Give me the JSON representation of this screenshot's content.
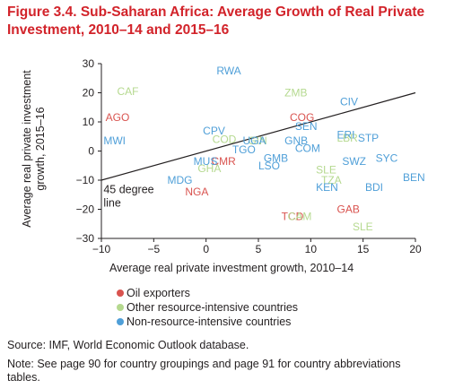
{
  "figure": {
    "title": "Figure 3.4. Sub-Saharan Africa: Average Growth of Real Private Investment, 2010–14 and 2015–16",
    "source": "Source: IMF, World Economic Outlook database.",
    "note": "Note: See page 90 for country groupings and page 91 for country abbreviations tables."
  },
  "chart_data": {
    "type": "scatter",
    "xlabel": "Average real private investment growth, 2010–14",
    "ylabel_lines": [
      "Average real private investment",
      "growth, 2015–16"
    ],
    "xlim": [
      -10,
      20
    ],
    "ylim": [
      -30,
      30
    ],
    "xticks": [
      -10,
      -5,
      0,
      5,
      10,
      15,
      20
    ],
    "xtick_labels": [
      "−10",
      "−5",
      "0",
      "5",
      "10",
      "15",
      "20"
    ],
    "yticks": [
      30,
      20,
      10,
      0,
      -10,
      -20,
      -30
    ],
    "ytick_labels": [
      "30",
      "20",
      "10",
      "0",
      "−10",
      "−20",
      "−30"
    ],
    "reference_line": {
      "label": [
        "45 degree",
        "line"
      ],
      "from": [
        -10,
        -10
      ],
      "to": [
        20,
        20
      ]
    },
    "colors": {
      "oil": "#d9534f",
      "resource": "#b5d98f",
      "nonresource": "#4f9fd8"
    },
    "series": [
      {
        "name": "Oil exporters",
        "key": "oil",
        "color": "#d9534f",
        "points": [
          {
            "label": "AGO",
            "x": -9.6,
            "y": 11.5
          },
          {
            "label": "COG",
            "x": 8.0,
            "y": 11.5
          },
          {
            "label": "CMR",
            "x": 0.5,
            "y": -3.5
          },
          {
            "label": "NGA",
            "x": -2.0,
            "y": -14.0
          },
          {
            "label": "TCD",
            "x": 7.2,
            "y": -22.5
          },
          {
            "label": "GAB",
            "x": 12.5,
            "y": -20.0
          }
        ]
      },
      {
        "name": "Other resource-intensive countries",
        "key": "resource",
        "color": "#b5d98f",
        "points": [
          {
            "label": "CAF",
            "x": -8.5,
            "y": 20.5
          },
          {
            "label": "ZMB",
            "x": 7.5,
            "y": 20.0
          },
          {
            "label": "COD",
            "x": 0.6,
            "y": 4.0
          },
          {
            "label": "GHA",
            "x": -0.8,
            "y": -6.0
          },
          {
            "label": "SLE",
            "x": 10.5,
            "y": -6.5
          },
          {
            "label": "TZA",
            "x": 11.0,
            "y": -10.0
          },
          {
            "label": "CAM",
            "x": 7.8,
            "y": -22.5
          },
          {
            "label": "SLE",
            "x": 14.0,
            "y": -26.0
          },
          {
            "label": "LBR",
            "x": 12.5,
            "y": 4.5
          },
          {
            "label": "GIN",
            "x": 4.0,
            "y": 3.5
          }
        ]
      },
      {
        "name": "Non-resource-intensive countries",
        "key": "nonresource",
        "color": "#4f9fd8",
        "points": [
          {
            "label": "RWA",
            "x": 1.0,
            "y": 27.5
          },
          {
            "label": "CIV",
            "x": 12.8,
            "y": 17.0
          },
          {
            "label": "MWI",
            "x": -9.8,
            "y": 3.5
          },
          {
            "label": "CPV",
            "x": -0.3,
            "y": 7.0
          },
          {
            "label": "UGA",
            "x": 3.5,
            "y": 3.5
          },
          {
            "label": "TGO",
            "x": 2.5,
            "y": 0.5
          },
          {
            "label": "SEN",
            "x": 8.5,
            "y": 8.5
          },
          {
            "label": "GNB",
            "x": 7.5,
            "y": 3.5
          },
          {
            "label": "COM",
            "x": 8.5,
            "y": 1.0
          },
          {
            "label": "ERI",
            "x": 12.5,
            "y": 5.5
          },
          {
            "label": "STP",
            "x": 14.5,
            "y": 4.5
          },
          {
            "label": "MUS",
            "x": -1.2,
            "y": -3.5
          },
          {
            "label": "GMB",
            "x": 5.5,
            "y": -2.5
          },
          {
            "label": "LSO",
            "x": 5.0,
            "y": -5.0
          },
          {
            "label": "SWZ",
            "x": 13.0,
            "y": -3.5
          },
          {
            "label": "SYC",
            "x": 16.2,
            "y": -2.5
          },
          {
            "label": "MDG",
            "x": -3.7,
            "y": -10.0
          },
          {
            "label": "KEN",
            "x": 10.5,
            "y": -12.5
          },
          {
            "label": "BDI",
            "x": 15.2,
            "y": -12.5
          },
          {
            "label": "BEN",
            "x": 18.8,
            "y": -9.0
          }
        ]
      }
    ]
  }
}
